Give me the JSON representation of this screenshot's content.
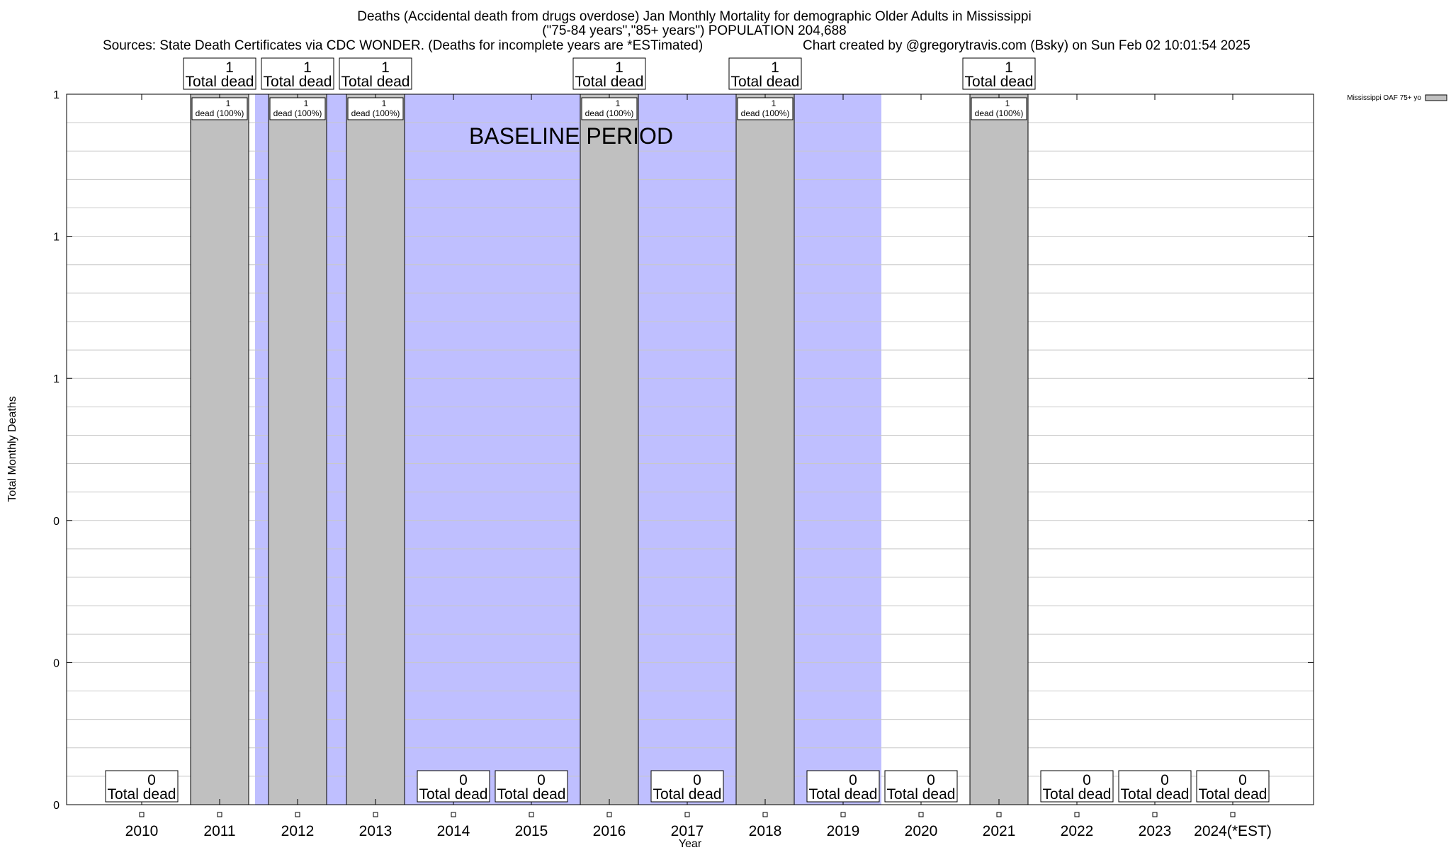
{
  "header": {
    "title_line1": "Deaths (Accidental death from drugs overdose) Jan Monthly Mortality for demographic Older Adults in Mississippi",
    "title_line2": "(\"75-84 years\",\"85+ years\") POPULATION 204,688",
    "sources": "Sources: State Death Certificates via CDC WONDER. (Deaths for incomplete years are *ESTimated)",
    "credit": "Chart created by @gregorytravis.com (Bsky) on Sun Feb 02 10:01:54 2025"
  },
  "chart_data": {
    "type": "bar",
    "xlabel": "Year",
    "ylabel": "Total Monthly Deaths",
    "categories": [
      "2010",
      "2011",
      "2012",
      "2013",
      "2014",
      "2015",
      "2016",
      "2017",
      "2018",
      "2019",
      "2020",
      "2021",
      "2022",
      "2023",
      "2024(*EST)"
    ],
    "series": [
      {
        "name": "Mississippi OAF 75+ yo",
        "values": [
          0,
          1,
          1,
          1,
          0,
          0,
          1,
          0,
          1,
          0,
          0,
          1,
          0,
          0,
          0
        ],
        "color": "#c0c0c0"
      }
    ],
    "ylim": [
      0,
      1
    ],
    "ytick_labels": [
      "0",
      "0",
      "0",
      "1",
      "1",
      "1"
    ],
    "total_label_text": "Total dead",
    "inner_label_text": "dead (100%)",
    "baseline": {
      "label": "BASELINE PERIOD",
      "from_year": "2012",
      "to_year": "2019",
      "color": "#bfbfff"
    },
    "legend_position": "top-right",
    "grid": true
  }
}
